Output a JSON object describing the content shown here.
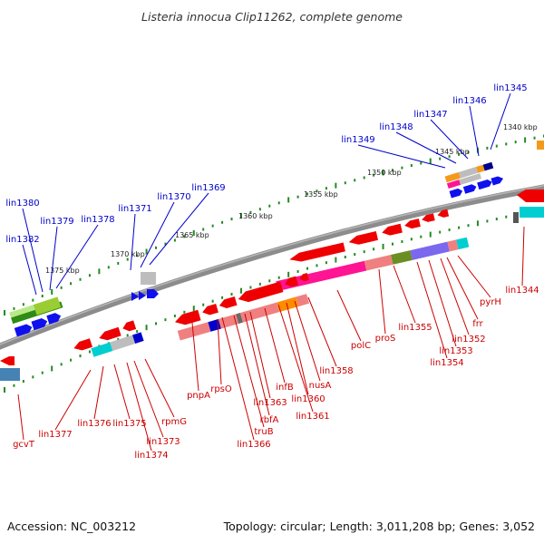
{
  "title": "Listeria innocua Clip11262, complete genome",
  "footer": {
    "accession": "Accession: NC_003212",
    "summary": "Topology: circular; Length: 3,011,208 bp; Genes: 3,052"
  },
  "colors": {
    "forward_label": "#0000cc",
    "reverse_label": "#cc0000",
    "backbone": "#7f7f7f",
    "tick": "#228b22"
  },
  "ticks": [
    "1340 kbp",
    "1345 kbp",
    "1350 kbp",
    "1355 kbp",
    "1360 kbp",
    "1365 kbp",
    "1370 kbp",
    "1375 kbp"
  ],
  "forward_genes": [
    "lin1345",
    "lin1346",
    "lin1347",
    "lin1348",
    "lin1349",
    "lin1369",
    "lin1370",
    "lin1371",
    "lin1378",
    "lin1379",
    "lin1380",
    "lin1382"
  ],
  "reverse_genes": [
    "lin1344",
    "pyrH",
    "frr",
    "lin1352",
    "lin1353",
    "lin1354",
    "lin1355",
    "proS",
    "polC",
    "lin1358",
    "nusA",
    "lin1360",
    "lin1361",
    "infB",
    "lin1363",
    "rbfA",
    "truB",
    "lin1366",
    "rpsO",
    "pnpA",
    "rpmG",
    "lin1373",
    "lin1374",
    "lin1375",
    "lin1376",
    "lin1377",
    "gcvT"
  ]
}
